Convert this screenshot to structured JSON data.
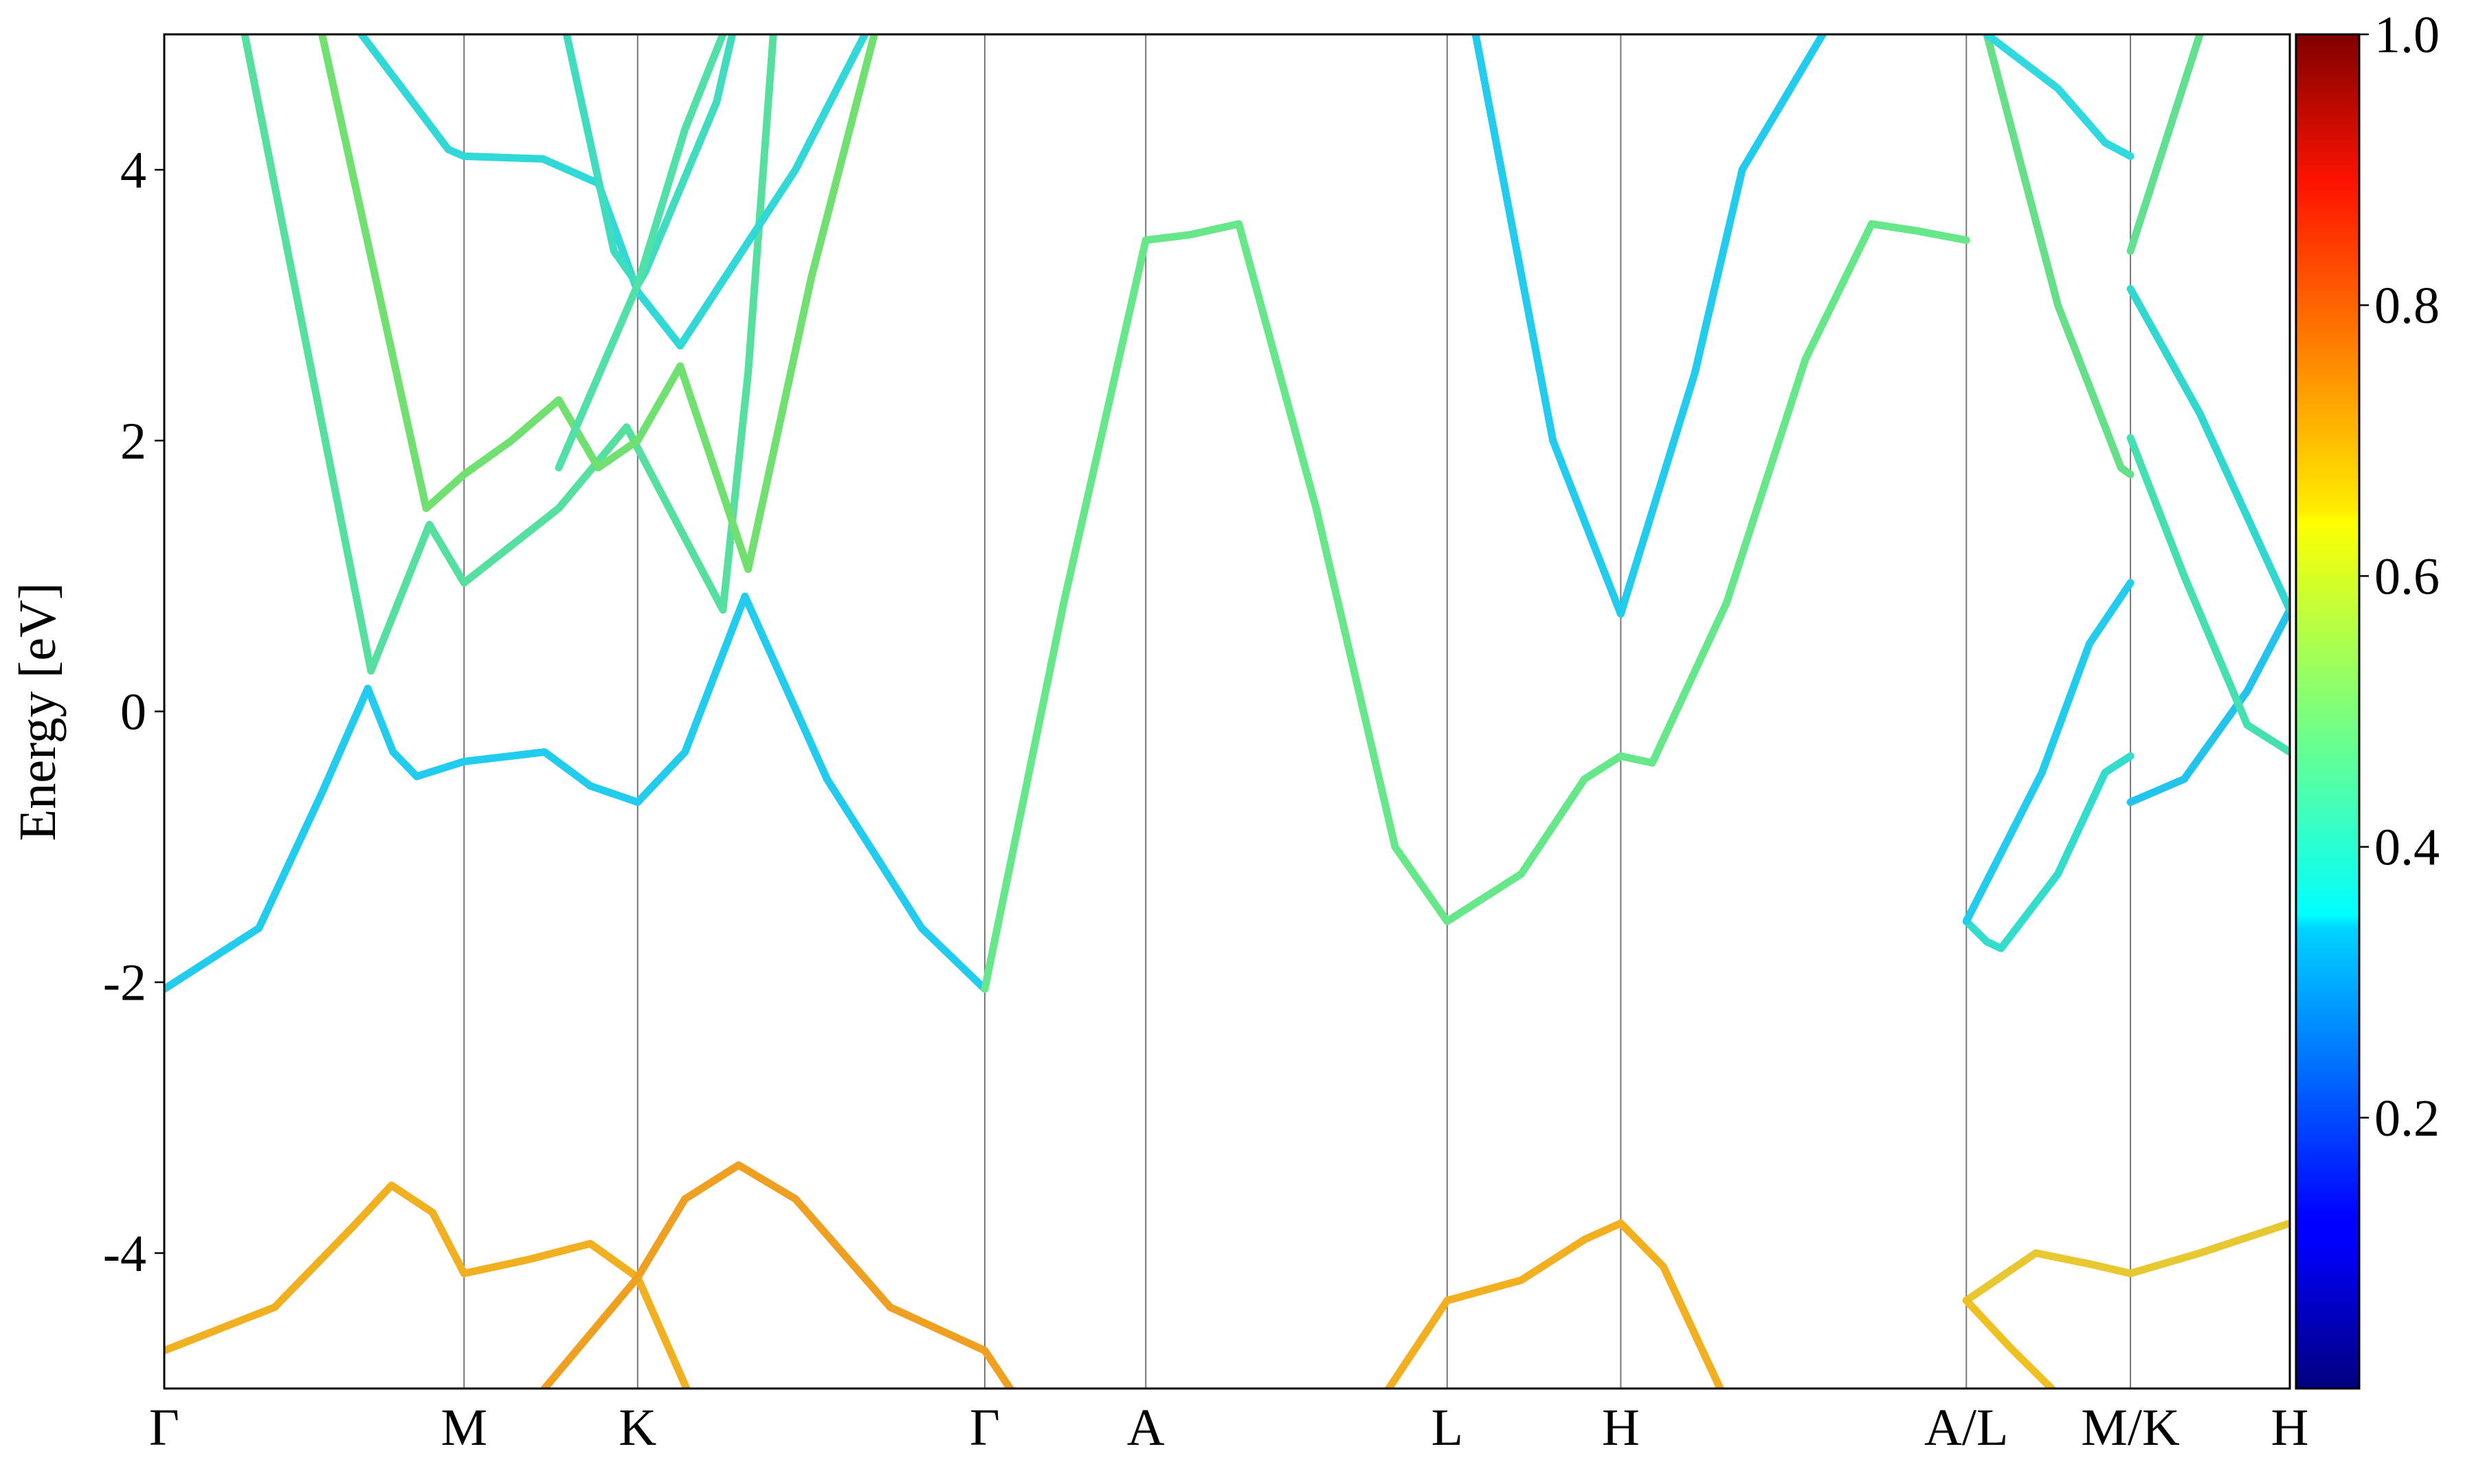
{
  "chart_data": {
    "type": "line",
    "ylabel": "Energy [eV]",
    "ylim": [
      -5,
      5
    ],
    "yticks": [
      -4,
      -2,
      0,
      2,
      4
    ],
    "xlim": [
      0,
      13.47
    ],
    "xticks": [
      {
        "value": 0,
        "label": "Γ"
      },
      {
        "value": 1.9,
        "label": "M"
      },
      {
        "value": 3.0,
        "label": "K"
      },
      {
        "value": 5.2,
        "label": "Γ"
      },
      {
        "value": 6.22,
        "label": "A"
      },
      {
        "value": 8.13,
        "label": "L"
      },
      {
        "value": 9.23,
        "label": "H"
      },
      {
        "value": 11.42,
        "label": "A/L"
      },
      {
        "value": 12.46,
        "label": "M/K"
      },
      {
        "value": 13.47,
        "label": "H"
      }
    ],
    "vlines": true,
    "colorbar": {
      "colormap": "jet",
      "clim": [
        0,
        1
      ],
      "ticks": [
        0.2,
        0.4,
        0.6,
        0.8,
        {
          "value": 1,
          "label": "1.0"
        }
      ]
    },
    "series": [
      {
        "color": "#f0b020",
        "x": [
          0,
          0.7,
          1.2,
          1.44,
          1.7,
          1.9,
          2.3,
          2.7,
          3.0,
          3.31
        ],
        "values": [
          -4.72,
          -4.4,
          -3.8,
          -3.5,
          -3.7,
          -4.15,
          -4.05,
          -3.93,
          -4.18,
          -5
        ]
      },
      {
        "color": "#f0a020",
        "x": [
          2.41,
          3.0,
          3.3,
          3.64,
          4.0,
          4.6,
          5.2,
          5.36
        ],
        "values": [
          -5,
          -4.18,
          -3.6,
          -3.35,
          -3.6,
          -4.4,
          -4.72,
          -5
        ]
      },
      {
        "color": "#f2b020",
        "x": [
          7.76,
          8.13,
          8.6,
          9.0,
          9.23,
          9.5,
          9.86
        ],
        "values": [
          -5,
          -4.35,
          -4.2,
          -3.9,
          -3.78,
          -4.1,
          -5
        ]
      },
      {
        "color": "#e8c830",
        "x": [
          11.42,
          11.86,
          12.2,
          12.46,
          12.9,
          13.47
        ],
        "values": [
          -4.35,
          -4.0,
          -4.08,
          -4.15,
          -4.0,
          -3.78
        ]
      },
      {
        "color": "#f0c020",
        "x": [
          11.42,
          11.7,
          11.96
        ],
        "values": [
          -4.35,
          -4.7,
          -5
        ]
      },
      {
        "color": "#22ccee",
        "x": [
          0,
          0.6,
          1.0,
          1.29,
          1.45,
          1.6,
          1.9,
          2.41,
          2.7,
          3.0,
          3.3,
          3.68,
          4.2,
          4.8,
          5.2
        ],
        "values": [
          -2.05,
          -1.6,
          -0.6,
          0.17,
          -0.3,
          -0.48,
          -0.37,
          -0.3,
          -0.55,
          -0.67,
          -0.3,
          0.85,
          -0.5,
          -1.6,
          -2.05
        ]
      },
      {
        "color": "#66e88a",
        "x": [
          5.2,
          5.7,
          6.22,
          6.5,
          6.81,
          7.3,
          7.8,
          8.13,
          8.6,
          9.0,
          9.23,
          9.43,
          9.9,
          10.4,
          10.82,
          11.1,
          11.42
        ],
        "values": [
          -2.05,
          0.8,
          3.48,
          3.52,
          3.6,
          1.5,
          -1.0,
          -1.55,
          -1.2,
          -0.5,
          -0.33,
          -0.38,
          0.8,
          2.6,
          3.6,
          3.55,
          3.48
        ]
      },
      {
        "color": "#33ddcc",
        "x": [
          11.42,
          11.55,
          11.64,
          12.0,
          12.3,
          12.46
        ],
        "values": [
          -1.55,
          -1.7,
          -1.75,
          -1.2,
          -0.45,
          -0.33
        ]
      },
      {
        "color": "#22ccee",
        "x": [
          11.42,
          11.9,
          12.2,
          12.46
        ],
        "values": [
          -1.55,
          -0.45,
          0.5,
          0.95
        ]
      },
      {
        "color": "#22c4ee",
        "x": [
          12.46,
          12.8,
          13.2,
          13.47
        ],
        "values": [
          -0.67,
          -0.5,
          0.15,
          0.75
        ]
      },
      {
        "color": "#44e0b0",
        "x": [
          12.46,
          12.8,
          13.2,
          13.47
        ],
        "values": [
          2.02,
          1.0,
          -0.1,
          -0.3
        ]
      },
      {
        "color": "#30d8d0",
        "x": [
          12.46,
          12.9,
          13.47
        ],
        "values": [
          3.12,
          2.2,
          0.75
        ]
      },
      {
        "color": "#55e0a0",
        "x": [
          0.51,
          1.31,
          1.68,
          1.9,
          2.5,
          2.93,
          3.2,
          3.54,
          3.7,
          3.86
        ],
        "values": [
          5,
          0.3,
          1.38,
          0.95,
          1.5,
          2.1,
          1.5,
          0.75,
          2.5,
          5
        ]
      },
      {
        "color": "#70e070",
        "x": [
          1.0,
          1.66,
          1.9,
          2.2,
          2.5,
          2.75,
          3.0,
          3.27,
          3.7,
          4.1,
          4.5
        ],
        "values": [
          5,
          1.5,
          1.75,
          2.0,
          2.3,
          1.8,
          2.0,
          2.55,
          1.05,
          3.2,
          5
        ]
      },
      {
        "color": "#30d8d8",
        "x": [
          1.25,
          1.8,
          1.9,
          2.4,
          2.75,
          3.0,
          3.27,
          4.0,
          4.44
        ],
        "values": [
          5,
          4.15,
          4.1,
          4.08,
          3.9,
          3.1,
          2.7,
          4.0,
          5
        ]
      },
      {
        "color": "#40dcc0",
        "x": [
          2.55,
          2.85,
          3.0,
          3.05,
          3.5,
          3.6
        ],
        "values": [
          5,
          3.4,
          3.15,
          3.25,
          4.5,
          5
        ]
      },
      {
        "color": "#50e0a8",
        "x": [
          2.5,
          3.0,
          3.3,
          3.54
        ],
        "values": [
          1.8,
          3.15,
          4.3,
          5
        ]
      },
      {
        "color": "#22ccee",
        "x": [
          8.31,
          8.8,
          9.23,
          9.7,
          10.0,
          10.51
        ],
        "values": [
          5,
          2.0,
          0.72,
          2.5,
          4.0,
          5
        ]
      },
      {
        "color": "#66e088",
        "x": [
          11.55,
          12.0,
          12.4,
          12.46
        ],
        "values": [
          5,
          3.0,
          1.8,
          1.75
        ]
      },
      {
        "color": "#30d8e0",
        "x": [
          11.55,
          12.0,
          12.3,
          12.46
        ],
        "values": [
          5,
          4.6,
          4.2,
          4.1
        ]
      },
      {
        "color": "#60e090",
        "x": [
          12.46,
          12.9
        ],
        "values": [
          3.4,
          5
        ]
      }
    ]
  }
}
